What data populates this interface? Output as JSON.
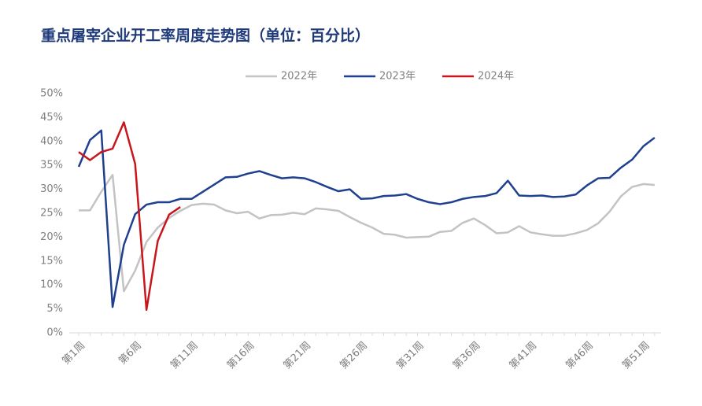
{
  "chart_data": {
    "type": "line",
    "title": "重点屠宰企业开工率周度走势图（单位：百分比）",
    "categories": [
      "第1周",
      null,
      null,
      null,
      null,
      "第6周",
      null,
      null,
      null,
      null,
      "第11周",
      null,
      null,
      null,
      null,
      "第16周",
      null,
      null,
      null,
      null,
      "第21周",
      null,
      null,
      null,
      null,
      "第26周",
      null,
      null,
      null,
      null,
      "第31周",
      null,
      null,
      null,
      null,
      "第36周",
      null,
      null,
      null,
      null,
      "第41周",
      null,
      null,
      null,
      null,
      "第46周",
      null,
      null,
      null,
      null,
      "第51周",
      null
    ],
    "series": [
      {
        "name": "2022年",
        "color": "#c3c3c3",
        "values": [
          25.6,
          25.6,
          29.5,
          33,
          8.7,
          13,
          19,
          22,
          24,
          25.5,
          26.7,
          27,
          26.8,
          25.6,
          25,
          25.3,
          23.9,
          24.6,
          24.7,
          25.1,
          24.8,
          26,
          25.8,
          25.5,
          24.2,
          23,
          22,
          20.7,
          20.5,
          19.9,
          20,
          20.1,
          21.1,
          21.3,
          23,
          23.9,
          22.5,
          20.8,
          21,
          22.3,
          21,
          20.6,
          20.3,
          20.3,
          20.8,
          21.5,
          22.9,
          25.3,
          28.5,
          30.5,
          31.1,
          30.9
        ]
      },
      {
        "name": "2023年",
        "color": "#1f3f8f",
        "values": [
          34.7,
          40.3,
          42.3,
          5.4,
          18.4,
          24.8,
          26.8,
          27.3,
          27.3,
          28,
          28,
          29.5,
          31,
          32.5,
          32.6,
          33.3,
          33.8,
          33,
          32.3,
          32.5,
          32.3,
          31.5,
          30.5,
          29.6,
          30,
          28,
          28.1,
          28.6,
          28.7,
          29,
          28,
          27.3,
          26.9,
          27.3,
          28,
          28.4,
          28.6,
          29.2,
          31.8,
          28.7,
          28.6,
          28.7,
          28.4,
          28.5,
          28.9,
          30.8,
          32.3,
          32.4,
          34.5,
          36.2,
          39,
          40.8
        ]
      },
      {
        "name": "2024年",
        "color": "#c8161d",
        "values": [
          37.8,
          36.1,
          37.8,
          38.5,
          44,
          35.3,
          4.8,
          19.2,
          24.7,
          26.3,
          null,
          null,
          null,
          null,
          null,
          null,
          null,
          null,
          null,
          null,
          null,
          null,
          null,
          null,
          null,
          null,
          null,
          null,
          null,
          null,
          null,
          null,
          null,
          null,
          null,
          null,
          null,
          null,
          null,
          null,
          null,
          null,
          null,
          null,
          null,
          null,
          null,
          null,
          null,
          null,
          null,
          null
        ]
      }
    ],
    "ylim": [
      0,
      50
    ],
    "yticks": [
      {
        "value": 0,
        "label": "0%"
      },
      {
        "value": 5,
        "label": "5%"
      },
      {
        "value": 10,
        "label": "10%"
      },
      {
        "value": 15,
        "label": "15%"
      },
      {
        "value": 20,
        "label": "20%"
      },
      {
        "value": 25,
        "label": "25%"
      },
      {
        "value": 30,
        "label": "30%"
      },
      {
        "value": 35,
        "label": "35%"
      },
      {
        "value": 40,
        "label": "40%"
      },
      {
        "value": 45,
        "label": "45%"
      },
      {
        "value": 50,
        "label": "50%"
      }
    ],
    "legend": "top"
  }
}
